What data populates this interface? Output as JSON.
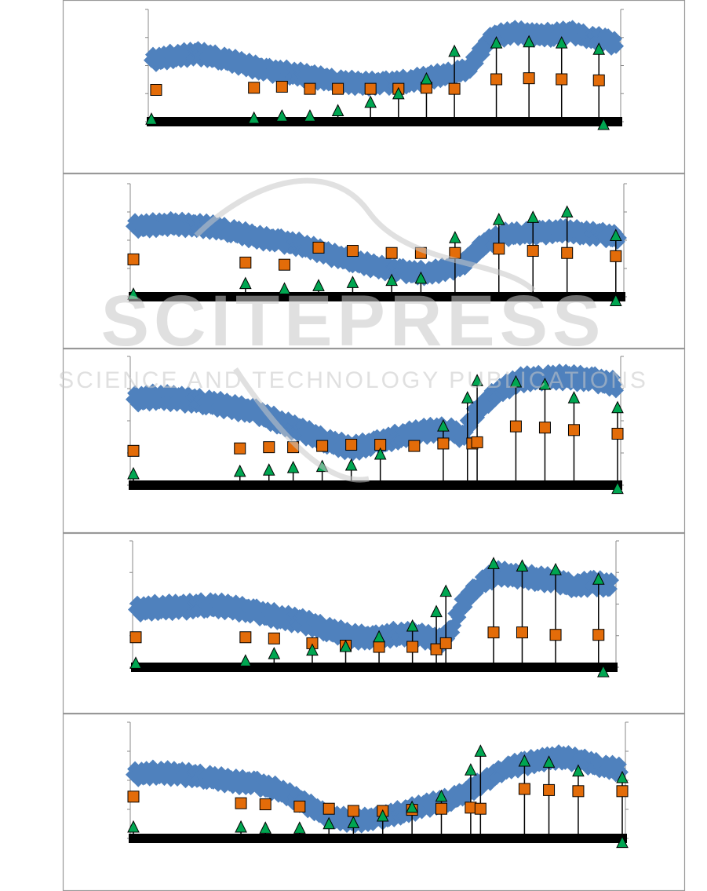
{
  "watermark": {
    "title": "SCITEPRESS",
    "subtitle": "SCIENCE AND TECHNOLOGY PUBLICATIONS"
  },
  "colors": {
    "band": "#4f81bd",
    "square": "#e36c09",
    "triangle": "#00a651",
    "frame": "#999999",
    "axis": "#000000",
    "watermark": "#c8c8c8"
  },
  "chart_data": [
    {
      "type": "scatter",
      "title": "",
      "xlabel": "",
      "ylabel": "",
      "xlim": [
        0,
        100
      ],
      "ylim": [
        0,
        100
      ],
      "grid": false,
      "band": [
        [
          0,
          58
        ],
        [
          5,
          62
        ],
        [
          10,
          64
        ],
        [
          15,
          60
        ],
        [
          20,
          54
        ],
        [
          25,
          48
        ],
        [
          30,
          46
        ],
        [
          35,
          42
        ],
        [
          40,
          38
        ],
        [
          45,
          36
        ],
        [
          50,
          36
        ],
        [
          55,
          38
        ],
        [
          60,
          42
        ],
        [
          65,
          46
        ],
        [
          68,
          50
        ],
        [
          70,
          62
        ],
        [
          73,
          80
        ],
        [
          78,
          84
        ],
        [
          82,
          82
        ],
        [
          86,
          82
        ],
        [
          90,
          84
        ],
        [
          94,
          80
        ],
        [
          98,
          76
        ],
        [
          100,
          72
        ]
      ],
      "squares": [
        [
          1,
          30
        ],
        [
          22,
          32
        ],
        [
          28,
          33
        ],
        [
          34,
          31
        ],
        [
          40,
          31
        ],
        [
          47,
          31
        ],
        [
          53,
          31
        ],
        [
          59,
          32
        ],
        [
          65,
          31
        ],
        [
          74,
          40
        ],
        [
          81,
          41
        ],
        [
          88,
          40
        ],
        [
          96,
          39
        ]
      ],
      "triangles": [
        [
          0,
          2
        ],
        [
          22,
          3
        ],
        [
          28,
          5
        ],
        [
          34,
          5
        ],
        [
          40,
          10
        ],
        [
          47,
          18
        ],
        [
          53,
          26
        ],
        [
          59,
          40
        ],
        [
          65,
          66
        ],
        [
          74,
          74
        ],
        [
          81,
          75
        ],
        [
          88,
          74
        ],
        [
          96,
          68
        ],
        [
          97,
          -3
        ]
      ]
    },
    {
      "type": "scatter",
      "title": "",
      "xlabel": "",
      "ylabel": "",
      "xlim": [
        0,
        100
      ],
      "ylim": [
        0,
        100
      ],
      "grid": false,
      "band": [
        [
          0,
          66
        ],
        [
          8,
          68
        ],
        [
          15,
          66
        ],
        [
          20,
          62
        ],
        [
          25,
          56
        ],
        [
          30,
          52
        ],
        [
          35,
          48
        ],
        [
          40,
          40
        ],
        [
          45,
          34
        ],
        [
          50,
          28
        ],
        [
          55,
          24
        ],
        [
          60,
          22
        ],
        [
          65,
          26
        ],
        [
          68,
          32
        ],
        [
          72,
          50
        ],
        [
          76,
          58
        ],
        [
          80,
          60
        ],
        [
          84,
          60
        ],
        [
          88,
          62
        ],
        [
          92,
          60
        ],
        [
          96,
          58
        ],
        [
          100,
          56
        ]
      ],
      "squares": [
        [
          0,
          35
        ],
        [
          23,
          32
        ],
        [
          31,
          30
        ],
        [
          38,
          46
        ],
        [
          45,
          43
        ],
        [
          53,
          41
        ],
        [
          59,
          41
        ],
        [
          66,
          41
        ],
        [
          75,
          45
        ],
        [
          82,
          43
        ],
        [
          89,
          41
        ],
        [
          99,
          38
        ]
      ],
      "triangles": [
        [
          0,
          2
        ],
        [
          23,
          12
        ],
        [
          31,
          7
        ],
        [
          38,
          10
        ],
        [
          45,
          13
        ],
        [
          53,
          15
        ],
        [
          59,
          17
        ],
        [
          66,
          55
        ],
        [
          75,
          72
        ],
        [
          82,
          74
        ],
        [
          89,
          79
        ],
        [
          99,
          57
        ],
        [
          99,
          -4
        ]
      ]
    },
    {
      "type": "scatter",
      "title": "",
      "xlabel": "",
      "ylabel": "",
      "xlim": [
        0,
        100
      ],
      "ylim": [
        0,
        100
      ],
      "grid": false,
      "band": [
        [
          0,
          70
        ],
        [
          5,
          72
        ],
        [
          10,
          70
        ],
        [
          15,
          68
        ],
        [
          20,
          64
        ],
        [
          25,
          60
        ],
        [
          30,
          52
        ],
        [
          35,
          44
        ],
        [
          40,
          36
        ],
        [
          45,
          30
        ],
        [
          50,
          34
        ],
        [
          55,
          40
        ],
        [
          60,
          44
        ],
        [
          65,
          46
        ],
        [
          68,
          40
        ],
        [
          70,
          56
        ],
        [
          75,
          76
        ],
        [
          80,
          86
        ],
        [
          85,
          88
        ],
        [
          90,
          88
        ],
        [
          95,
          86
        ],
        [
          100,
          82
        ]
      ],
      "squares": [
        [
          0,
          28
        ],
        [
          22,
          30
        ],
        [
          28,
          31
        ],
        [
          33,
          31
        ],
        [
          39,
          32
        ],
        [
          45,
          33
        ],
        [
          51,
          33
        ],
        [
          58,
          32
        ],
        [
          64,
          34
        ],
        [
          70,
          34
        ],
        [
          71,
          35
        ],
        [
          79,
          48
        ],
        [
          85,
          47
        ],
        [
          91,
          45
        ],
        [
          100,
          42
        ]
      ],
      "triangles": [
        [
          0,
          9
        ],
        [
          22,
          11
        ],
        [
          28,
          12
        ],
        [
          33,
          14
        ],
        [
          39,
          15
        ],
        [
          45,
          16
        ],
        [
          51,
          25
        ],
        [
          64,
          48
        ],
        [
          69,
          71
        ],
        [
          71,
          85
        ],
        [
          79,
          84
        ],
        [
          85,
          82
        ],
        [
          91,
          71
        ],
        [
          100,
          63
        ],
        [
          100,
          -3
        ]
      ]
    },
    {
      "type": "scatter",
      "title": "",
      "xlabel": "",
      "ylabel": "",
      "xlim": [
        0,
        100
      ],
      "ylim": [
        0,
        100
      ],
      "grid": false,
      "band": [
        [
          0,
          48
        ],
        [
          5,
          50
        ],
        [
          10,
          50
        ],
        [
          15,
          52
        ],
        [
          20,
          50
        ],
        [
          25,
          46
        ],
        [
          30,
          42
        ],
        [
          35,
          38
        ],
        [
          40,
          32
        ],
        [
          45,
          26
        ],
        [
          50,
          24
        ],
        [
          55,
          28
        ],
        [
          60,
          26
        ],
        [
          64,
          22
        ],
        [
          66,
          30
        ],
        [
          68,
          50
        ],
        [
          72,
          70
        ],
        [
          76,
          78
        ],
        [
          80,
          76
        ],
        [
          84,
          74
        ],
        [
          88,
          72
        ],
        [
          92,
          68
        ],
        [
          96,
          70
        ],
        [
          100,
          68
        ]
      ],
      "squares": [
        [
          0,
          25
        ],
        [
          23,
          25
        ],
        [
          29,
          24
        ],
        [
          37,
          20
        ],
        [
          44,
          18
        ],
        [
          51,
          17
        ],
        [
          58,
          17
        ],
        [
          63,
          15
        ],
        [
          65,
          20
        ],
        [
          75,
          29
        ],
        [
          81,
          29
        ],
        [
          88,
          27
        ],
        [
          97,
          27
        ]
      ],
      "triangles": [
        [
          0,
          3
        ],
        [
          23,
          5
        ],
        [
          29,
          11
        ],
        [
          37,
          14
        ],
        [
          44,
          17
        ],
        [
          51,
          25
        ],
        [
          58,
          34
        ],
        [
          63,
          46
        ],
        [
          65,
          63
        ],
        [
          75,
          86
        ],
        [
          81,
          84
        ],
        [
          88,
          81
        ],
        [
          97,
          73
        ],
        [
          98,
          -4
        ]
      ]
    },
    {
      "type": "scatter",
      "title": "",
      "xlabel": "",
      "ylabel": "",
      "xlim": [
        0,
        100
      ],
      "ylim": [
        0,
        100
      ],
      "grid": false,
      "band": [
        [
          0,
          58
        ],
        [
          5,
          60
        ],
        [
          10,
          58
        ],
        [
          15,
          56
        ],
        [
          20,
          52
        ],
        [
          25,
          50
        ],
        [
          30,
          44
        ],
        [
          35,
          32
        ],
        [
          40,
          20
        ],
        [
          45,
          16
        ],
        [
          50,
          18
        ],
        [
          55,
          24
        ],
        [
          60,
          30
        ],
        [
          65,
          36
        ],
        [
          68,
          42
        ],
        [
          72,
          52
        ],
        [
          76,
          64
        ],
        [
          80,
          68
        ],
        [
          84,
          72
        ],
        [
          88,
          74
        ],
        [
          92,
          70
        ],
        [
          96,
          66
        ],
        [
          100,
          62
        ]
      ],
      "squares": [
        [
          0,
          38
        ],
        [
          22,
          32
        ],
        [
          27,
          31
        ],
        [
          34,
          29
        ],
        [
          40,
          27
        ],
        [
          45,
          25
        ],
        [
          51,
          25
        ],
        [
          57,
          26
        ],
        [
          63,
          27
        ],
        [
          69,
          28
        ],
        [
          71,
          27
        ],
        [
          80,
          45
        ],
        [
          85,
          44
        ],
        [
          91,
          43
        ],
        [
          100,
          43
        ]
      ],
      "triangles": [
        [
          0,
          10
        ],
        [
          22,
          10
        ],
        [
          27,
          9
        ],
        [
          34,
          9
        ],
        [
          40,
          13
        ],
        [
          45,
          14
        ],
        [
          51,
          20
        ],
        [
          57,
          28
        ],
        [
          63,
          38
        ],
        [
          69,
          62
        ],
        [
          71,
          79
        ],
        [
          80,
          70
        ],
        [
          85,
          69
        ],
        [
          91,
          61
        ],
        [
          100,
          55
        ],
        [
          100,
          -4
        ]
      ]
    }
  ]
}
